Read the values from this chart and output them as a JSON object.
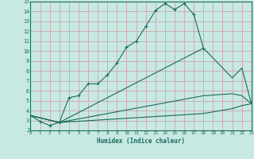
{
  "background_color": "#c8e8e4",
  "grid_color_major": "#d4a0a0",
  "grid_color_minor": "#d8c0c0",
  "line_color": "#1a6b5a",
  "xlabel": "Humidex (Indice chaleur)",
  "xlim": [
    0,
    23
  ],
  "ylim": [
    2,
    15
  ],
  "xticks": [
    0,
    1,
    2,
    3,
    4,
    5,
    6,
    7,
    8,
    9,
    10,
    11,
    12,
    13,
    14,
    15,
    16,
    17,
    18,
    19,
    20,
    21,
    22,
    23
  ],
  "yticks": [
    2,
    3,
    4,
    5,
    6,
    7,
    8,
    9,
    10,
    11,
    12,
    13,
    14,
    15
  ],
  "series": [
    {
      "x": [
        0,
        1,
        2,
        3,
        4,
        5,
        6,
        7,
        8,
        9,
        10,
        11,
        12,
        13,
        14,
        15,
        16,
        17,
        18
      ],
      "y": [
        3.5,
        2.9,
        2.5,
        2.8,
        5.3,
        5.5,
        6.7,
        6.7,
        7.6,
        8.8,
        10.4,
        11.0,
        12.5,
        14.1,
        14.8,
        14.2,
        14.8,
        13.7,
        10.3
      ],
      "has_markers": true
    },
    {
      "x": [
        0,
        3,
        18,
        21,
        22,
        23
      ],
      "y": [
        3.5,
        2.8,
        10.3,
        7.3,
        8.3,
        4.7
      ],
      "has_markers": false
    },
    {
      "x": [
        0,
        3,
        18,
        21,
        22,
        23
      ],
      "y": [
        3.5,
        2.8,
        5.5,
        5.7,
        5.5,
        4.7
      ],
      "has_markers": false
    },
    {
      "x": [
        0,
        3,
        18,
        21,
        22,
        23
      ],
      "y": [
        3.5,
        2.8,
        3.7,
        4.2,
        4.5,
        4.7
      ],
      "has_markers": false
    }
  ]
}
